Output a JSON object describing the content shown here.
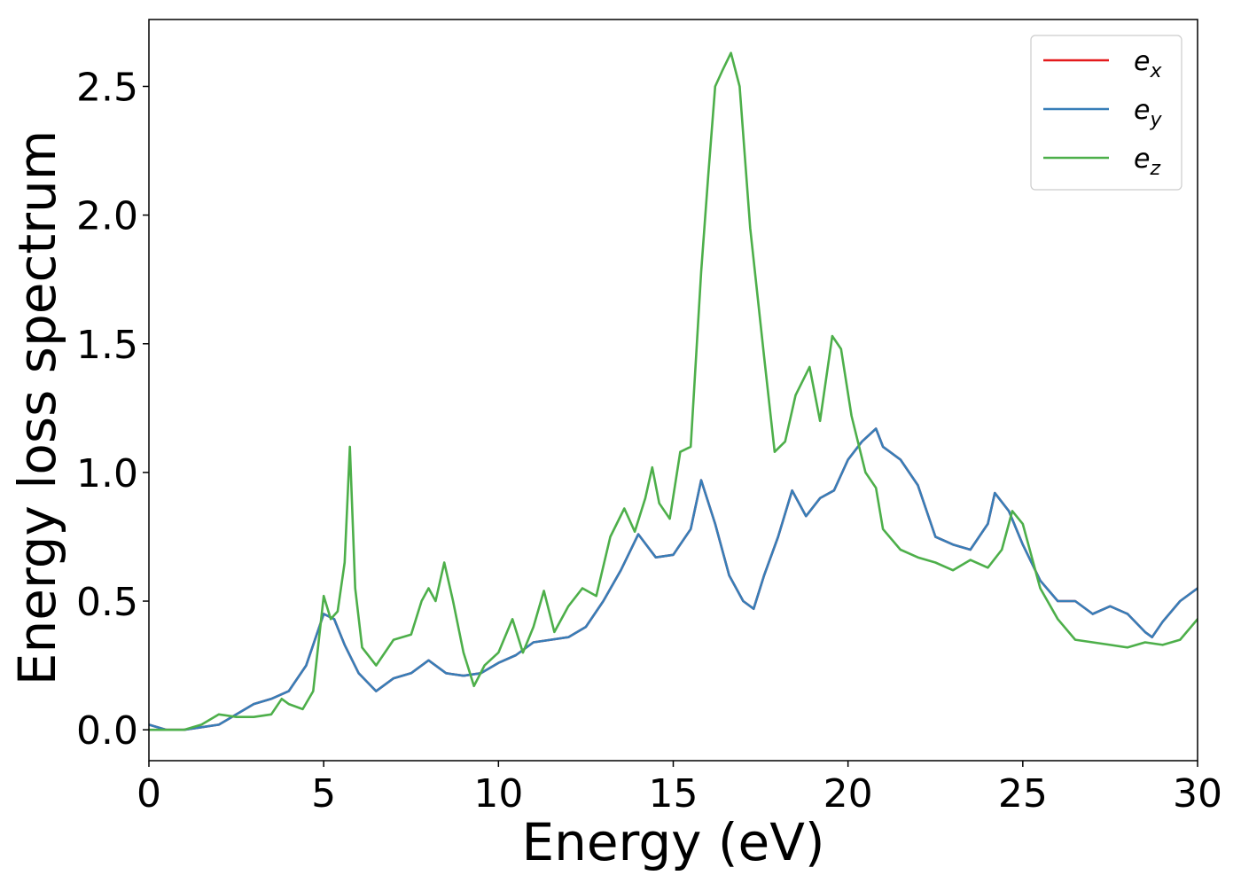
{
  "chart_data": {
    "type": "line",
    "xlabel": "Energy (eV)",
    "ylabel": "Energy loss spectrum",
    "xlim": [
      0,
      30
    ],
    "ylim": [
      -0.12,
      2.76
    ],
    "xticks": [
      0,
      5,
      10,
      15,
      20,
      25,
      30
    ],
    "xtick_labels": [
      "0",
      "5",
      "10",
      "15",
      "20",
      "25",
      "30"
    ],
    "yticks": [
      0.0,
      0.5,
      1.0,
      1.5,
      2.0,
      2.5
    ],
    "ytick_labels": [
      "0.0",
      "0.5",
      "1.0",
      "1.5",
      "2.0",
      "2.5"
    ],
    "grid": false,
    "legend_position": "top-right",
    "series": [
      {
        "name": "e_x",
        "label_main": "e",
        "label_sub": "x",
        "color": "#e41a1c",
        "x": [
          0,
          0.5,
          1,
          1.5,
          2,
          2.5,
          3,
          3.5,
          4,
          4.5,
          5,
          5.3,
          5.6,
          6,
          6.5,
          7,
          7.5,
          8,
          8.5,
          9,
          9.5,
          10,
          10.5,
          11,
          11.5,
          12,
          12.5,
          13,
          13.5,
          14,
          14.5,
          15,
          15.5,
          15.8,
          16.2,
          16.6,
          17,
          17.3,
          17.6,
          18,
          18.4,
          18.8,
          19.2,
          19.6,
          20,
          20.4,
          20.8,
          21,
          21.5,
          22,
          22.5,
          23,
          23.5,
          24,
          24.2,
          24.6,
          25,
          25.5,
          26,
          26.5,
          27,
          27.5,
          28,
          28.5,
          28.7,
          29,
          29.5,
          30
        ],
        "values": [
          0.02,
          0.0,
          0.0,
          0.01,
          0.02,
          0.06,
          0.1,
          0.12,
          0.15,
          0.25,
          0.45,
          0.43,
          0.33,
          0.22,
          0.15,
          0.2,
          0.22,
          0.27,
          0.22,
          0.21,
          0.22,
          0.26,
          0.29,
          0.34,
          0.35,
          0.36,
          0.4,
          0.5,
          0.62,
          0.76,
          0.67,
          0.68,
          0.78,
          0.97,
          0.8,
          0.6,
          0.5,
          0.47,
          0.6,
          0.75,
          0.93,
          0.83,
          0.9,
          0.93,
          1.05,
          1.12,
          1.17,
          1.1,
          1.05,
          0.95,
          0.75,
          0.72,
          0.7,
          0.8,
          0.92,
          0.85,
          0.72,
          0.58,
          0.5,
          0.5,
          0.45,
          0.48,
          0.45,
          0.38,
          0.36,
          0.42,
          0.5,
          0.55
        ]
      },
      {
        "name": "e_y",
        "label_main": "e",
        "label_sub": "y",
        "color": "#377eb8",
        "x": [
          0,
          0.5,
          1,
          1.5,
          2,
          2.5,
          3,
          3.5,
          4,
          4.5,
          5,
          5.3,
          5.6,
          6,
          6.5,
          7,
          7.5,
          8,
          8.5,
          9,
          9.5,
          10,
          10.5,
          11,
          11.5,
          12,
          12.5,
          13,
          13.5,
          14,
          14.5,
          15,
          15.5,
          15.8,
          16.2,
          16.6,
          17,
          17.3,
          17.6,
          18,
          18.4,
          18.8,
          19.2,
          19.6,
          20,
          20.4,
          20.8,
          21,
          21.5,
          22,
          22.5,
          23,
          23.5,
          24,
          24.2,
          24.6,
          25,
          25.5,
          26,
          26.5,
          27,
          27.5,
          28,
          28.5,
          28.7,
          29,
          29.5,
          30
        ],
        "values": [
          0.02,
          0.0,
          0.0,
          0.01,
          0.02,
          0.06,
          0.1,
          0.12,
          0.15,
          0.25,
          0.45,
          0.43,
          0.33,
          0.22,
          0.15,
          0.2,
          0.22,
          0.27,
          0.22,
          0.21,
          0.22,
          0.26,
          0.29,
          0.34,
          0.35,
          0.36,
          0.4,
          0.5,
          0.62,
          0.76,
          0.67,
          0.68,
          0.78,
          0.97,
          0.8,
          0.6,
          0.5,
          0.47,
          0.6,
          0.75,
          0.93,
          0.83,
          0.9,
          0.93,
          1.05,
          1.12,
          1.17,
          1.1,
          1.05,
          0.95,
          0.75,
          0.72,
          0.7,
          0.8,
          0.92,
          0.85,
          0.72,
          0.58,
          0.5,
          0.5,
          0.45,
          0.48,
          0.45,
          0.38,
          0.36,
          0.42,
          0.5,
          0.55
        ]
      },
      {
        "name": "e_z",
        "label_main": "e",
        "label_sub": "z",
        "color": "#4daf4a",
        "x": [
          0,
          0.5,
          1,
          1.5,
          2,
          2.5,
          3,
          3.5,
          3.8,
          4,
          4.4,
          4.7,
          5,
          5.2,
          5.4,
          5.6,
          5.75,
          5.9,
          6.1,
          6.5,
          7,
          7.5,
          7.8,
          8,
          8.2,
          8.45,
          8.7,
          9,
          9.3,
          9.6,
          10,
          10.4,
          10.7,
          11,
          11.3,
          11.6,
          12,
          12.4,
          12.8,
          13.2,
          13.6,
          13.9,
          14.2,
          14.4,
          14.6,
          14.9,
          15.2,
          15.5,
          15.8,
          16,
          16.2,
          16.4,
          16.65,
          16.9,
          17.2,
          17.6,
          17.9,
          18.2,
          18.5,
          18.9,
          19.2,
          19.55,
          19.8,
          20.1,
          20.5,
          20.8,
          21,
          21.5,
          22,
          22.5,
          23,
          23.5,
          24,
          24.4,
          24.7,
          25,
          25.5,
          26,
          26.5,
          27,
          27.5,
          28,
          28.5,
          29,
          29.5,
          30
        ],
        "values": [
          0.0,
          0.0,
          0.0,
          0.02,
          0.06,
          0.05,
          0.05,
          0.06,
          0.12,
          0.1,
          0.08,
          0.15,
          0.52,
          0.43,
          0.46,
          0.65,
          1.1,
          0.55,
          0.32,
          0.25,
          0.35,
          0.37,
          0.5,
          0.55,
          0.5,
          0.65,
          0.5,
          0.3,
          0.17,
          0.25,
          0.3,
          0.43,
          0.3,
          0.4,
          0.54,
          0.38,
          0.48,
          0.55,
          0.52,
          0.75,
          0.86,
          0.77,
          0.9,
          1.02,
          0.88,
          0.82,
          1.08,
          1.1,
          1.78,
          2.15,
          2.5,
          2.56,
          2.63,
          2.5,
          1.95,
          1.45,
          1.08,
          1.12,
          1.3,
          1.41,
          1.2,
          1.53,
          1.48,
          1.22,
          1.0,
          0.94,
          0.78,
          0.7,
          0.67,
          0.65,
          0.62,
          0.66,
          0.63,
          0.7,
          0.85,
          0.8,
          0.55,
          0.43,
          0.35,
          0.34,
          0.33,
          0.32,
          0.34,
          0.33,
          0.35,
          0.43
        ]
      }
    ]
  }
}
